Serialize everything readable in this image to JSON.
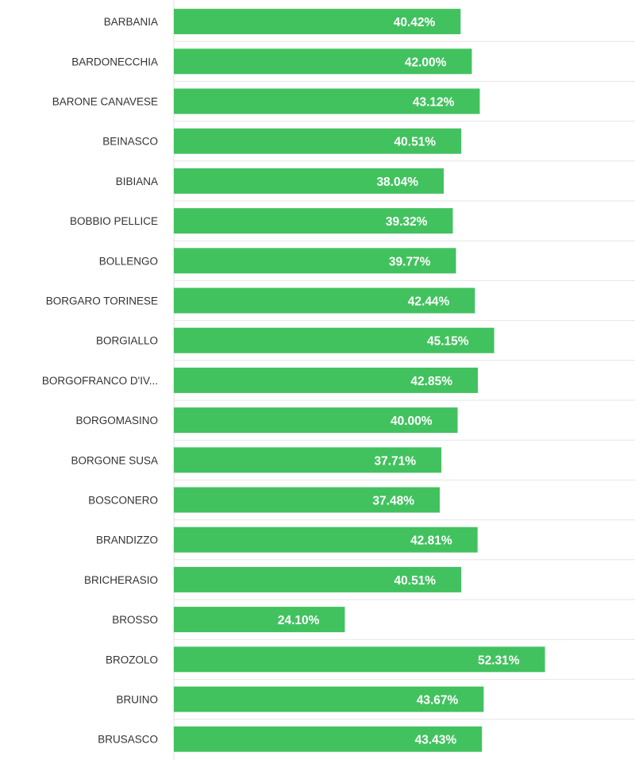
{
  "chart_data": {
    "type": "bar",
    "orientation": "horizontal",
    "categories": [
      "BARBANIA",
      "BARDONECCHIA",
      "BARONE CANAVESE",
      "BEINASCO",
      "BIBIANA",
      "BOBBIO PELLICE",
      "BOLLENGO",
      "BORGARO TORINESE",
      "BORGIALLO",
      "BORGOFRANCO D'IV...",
      "BORGOMASINO",
      "BORGONE SUSA",
      "BOSCONERO",
      "BRANDIZZO",
      "BRICHERASIO",
      "BROSSO",
      "BROZOLO",
      "BRUINO",
      "BRUSASCO"
    ],
    "values": [
      40.42,
      42.0,
      43.12,
      40.51,
      38.04,
      39.32,
      39.77,
      42.44,
      45.15,
      42.85,
      40.0,
      37.71,
      37.48,
      42.81,
      40.51,
      24.1,
      52.31,
      43.67,
      43.43
    ],
    "value_labels": [
      "40.42%",
      "42.00%",
      "43.12%",
      "40.51%",
      "38.04%",
      "39.32%",
      "39.77%",
      "42.44%",
      "45.15%",
      "42.85%",
      "40.00%",
      "37.71%",
      "37.48%",
      "42.81%",
      "40.51%",
      "24.10%",
      "52.31%",
      "43.67%",
      "43.43%"
    ],
    "xlim": [
      0,
      65
    ],
    "bar_color": "#42c25f",
    "label_color": "#ffffff",
    "title": "",
    "xlabel": "",
    "ylabel": "",
    "grid": "row separators",
    "legend": "none"
  }
}
